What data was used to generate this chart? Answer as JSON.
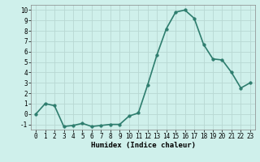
{
  "x": [
    0,
    1,
    2,
    3,
    4,
    5,
    6,
    7,
    8,
    9,
    10,
    11,
    12,
    13,
    14,
    15,
    16,
    17,
    18,
    19,
    20,
    21,
    22,
    23
  ],
  "y": [
    0.0,
    1.0,
    0.8,
    -1.2,
    -1.1,
    -0.9,
    -1.2,
    -1.1,
    -1.0,
    -1.0,
    -0.2,
    0.1,
    2.8,
    5.7,
    8.2,
    9.8,
    10.0,
    9.2,
    6.7,
    5.3,
    5.2,
    4.0,
    2.5,
    3.0
  ],
  "xlabel": "Humidex (Indice chaleur)",
  "xlim": [
    -0.5,
    23.5
  ],
  "ylim": [
    -1.5,
    10.5
  ],
  "yticks": [
    -1,
    0,
    1,
    2,
    3,
    4,
    5,
    6,
    7,
    8,
    9,
    10
  ],
  "xticks": [
    0,
    1,
    2,
    3,
    4,
    5,
    6,
    7,
    8,
    9,
    10,
    11,
    12,
    13,
    14,
    15,
    16,
    17,
    18,
    19,
    20,
    21,
    22,
    23
  ],
  "line_color": "#2e7d6e",
  "bg_color": "#cff0eb",
  "grid_color": "#b8d8d3",
  "marker_size": 2.5,
  "line_width": 1.2,
  "tick_fontsize": 5.5,
  "xlabel_fontsize": 6.5
}
